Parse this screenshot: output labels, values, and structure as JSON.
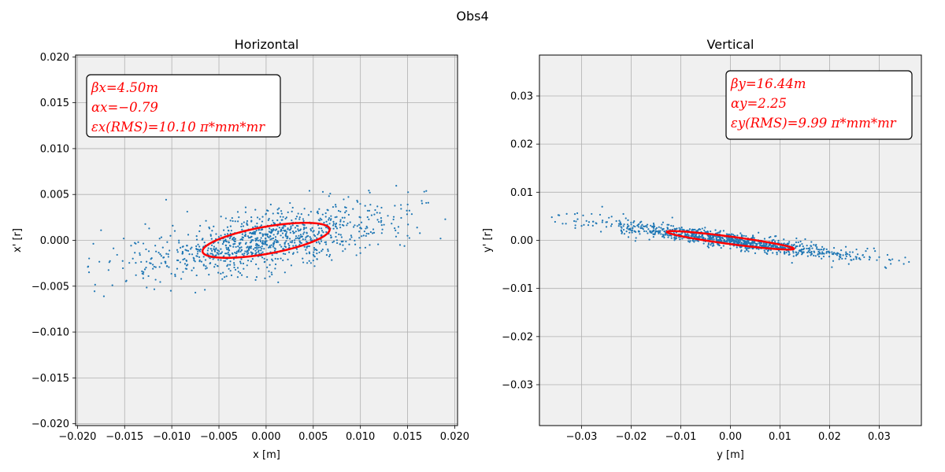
{
  "figure": {
    "title": "Obs4"
  },
  "chart_data": [
    {
      "type": "scatter",
      "title": "Horizontal",
      "xlabel": "x [m]",
      "ylabel": "x' [r]",
      "xlim": [
        -0.0202,
        0.0203
      ],
      "ylim": [
        -0.0202,
        0.0202
      ],
      "xticks": [
        -0.02,
        -0.015,
        -0.01,
        -0.005,
        0.0,
        0.005,
        0.01,
        0.015,
        0.02
      ],
      "xtick_labels": [
        "−0.020",
        "−0.015",
        "−0.010",
        "−0.005",
        "0.000",
        "0.005",
        "0.010",
        "0.015",
        "0.020"
      ],
      "yticks": [
        -0.02,
        -0.015,
        -0.01,
        -0.005,
        0.0,
        0.005,
        0.01,
        0.015,
        0.02
      ],
      "ytick_labels": [
        "−0.020",
        "−0.015",
        "−0.010",
        "−0.005",
        "0.000",
        "0.005",
        "0.010",
        "0.015",
        "0.020"
      ],
      "grid": true,
      "background": "#f0f0f0",
      "point_color": "#1f77b4",
      "ellipse_color": "#ff0000",
      "twiss": {
        "beta": 4.5,
        "alpha": -0.79,
        "emittance_rms": 1.01e-05
      },
      "annotation_lines": [
        "βx=4.50m",
        "αx=−0.79",
        "εx(RMS)=10.10 π*mm*mr"
      ],
      "annotation_position": "top-left",
      "sample_points": [
        [
          -0.0175,
          0.0011
        ],
        [
          -0.0172,
          -0.0061
        ],
        [
          -0.0189,
          -0.0029
        ],
        [
          -0.0163,
          -0.0049
        ],
        [
          -0.0151,
          0.0002
        ],
        [
          -0.0138,
          -0.0038
        ],
        [
          -0.0124,
          0.0013
        ],
        [
          -0.0101,
          -0.0055
        ],
        [
          -0.0099,
          0.0016
        ],
        [
          -0.0075,
          -0.0057
        ],
        [
          -0.012,
          -0.0031
        ],
        [
          -0.0105,
          -0.0028
        ],
        [
          -0.0088,
          -0.0021
        ],
        [
          -0.007,
          -0.0012
        ],
        [
          -0.0055,
          -0.0019
        ],
        [
          -0.004,
          -0.0008
        ],
        [
          -0.006,
          0.0013
        ],
        [
          -0.003,
          0.0031
        ],
        [
          -0.002,
          0.0021
        ],
        [
          0.0,
          0.0029
        ],
        [
          0.002,
          0.001
        ],
        [
          0.004,
          0.0012
        ],
        [
          0.0046,
          0.0054
        ],
        [
          0.0068,
          0.0051
        ],
        [
          0.0085,
          0.0032
        ],
        [
          0.011,
          0.0052
        ],
        [
          0.0125,
          0.0017
        ],
        [
          0.014,
          0.0008
        ],
        [
          0.0165,
          0.0043
        ],
        [
          0.0172,
          0.0041
        ],
        [
          0.019,
          0.0023
        ],
        [
          0.0185,
          0.0002
        ],
        [
          0.015,
          0.0005
        ],
        [
          0.01,
          0.0025
        ],
        [
          0.006,
          -0.001
        ],
        [
          0.005,
          -0.0022
        ],
        [
          0.002,
          -0.0035
        ],
        [
          -0.001,
          -0.004
        ],
        [
          -0.003,
          -0.003
        ],
        [
          -0.009,
          -0.0042
        ]
      ]
    },
    {
      "type": "scatter",
      "title": "Vertical",
      "xlabel": "y [m]",
      "ylabel": "y' [r]",
      "xlim": [
        -0.0385,
        0.0385
      ],
      "ylim": [
        -0.0385,
        0.0385
      ],
      "xticks": [
        -0.03,
        -0.02,
        -0.01,
        0.0,
        0.01,
        0.02,
        0.03
      ],
      "xtick_labels": [
        "−0.03",
        "−0.02",
        "−0.01",
        "0.00",
        "0.01",
        "0.02",
        "0.03"
      ],
      "yticks": [
        -0.03,
        -0.02,
        -0.01,
        0.0,
        0.01,
        0.02,
        0.03
      ],
      "ytick_labels": [
        "−0.03",
        "−0.02",
        "−0.01",
        "0.00",
        "0.01",
        "0.02",
        "0.03"
      ],
      "grid": true,
      "background": "#f0f0f0",
      "point_color": "#1f77b4",
      "ellipse_color": "#ff0000",
      "twiss": {
        "beta": 16.44,
        "alpha": 2.25,
        "emittance_rms": 9.99e-06
      },
      "annotation_lines": [
        "βy=16.44m",
        "αy=2.25",
        "εy(RMS)=9.99 π*mm*mr"
      ],
      "annotation_position": "top-right",
      "sample_points": [
        [
          -0.036,
          0.0048
        ],
        [
          -0.0345,
          0.0052
        ],
        [
          -0.033,
          0.0055
        ],
        [
          -0.0315,
          0.004
        ],
        [
          -0.03,
          0.003
        ],
        [
          -0.0285,
          0.0038
        ],
        [
          -0.027,
          0.0035
        ],
        [
          -0.025,
          0.0028
        ],
        [
          -0.023,
          0.004
        ],
        [
          -0.0215,
          0.0022
        ],
        [
          -0.02,
          0.0033
        ],
        [
          -0.0185,
          0.0018
        ],
        [
          -0.017,
          0.003
        ],
        [
          -0.0155,
          0.0021
        ],
        [
          -0.014,
          0.0026
        ],
        [
          -0.012,
          0.0015
        ],
        [
          -0.01,
          0.0012
        ],
        [
          -0.008,
          0.0016
        ],
        [
          -0.006,
          0.0007
        ],
        [
          -0.004,
          0.0004
        ],
        [
          -0.002,
          0.0006
        ],
        [
          0.0,
          0.0001
        ],
        [
          0.002,
          -0.0003
        ],
        [
          0.004,
          -0.0006
        ],
        [
          0.006,
          -0.001
        ],
        [
          0.008,
          -0.0008
        ],
        [
          0.01,
          -0.0015
        ],
        [
          0.012,
          -0.0017
        ],
        [
          0.014,
          -0.0022
        ],
        [
          0.016,
          -0.002
        ],
        [
          0.018,
          -0.0028
        ],
        [
          0.02,
          -0.0025
        ],
        [
          0.022,
          -0.0033
        ],
        [
          0.024,
          -0.003
        ],
        [
          0.026,
          -0.0037
        ],
        [
          0.028,
          -0.004
        ],
        [
          0.03,
          -0.0035
        ],
        [
          0.032,
          -0.004
        ],
        [
          0.034,
          -0.0042
        ],
        [
          0.036,
          -0.0045
        ]
      ]
    }
  ]
}
